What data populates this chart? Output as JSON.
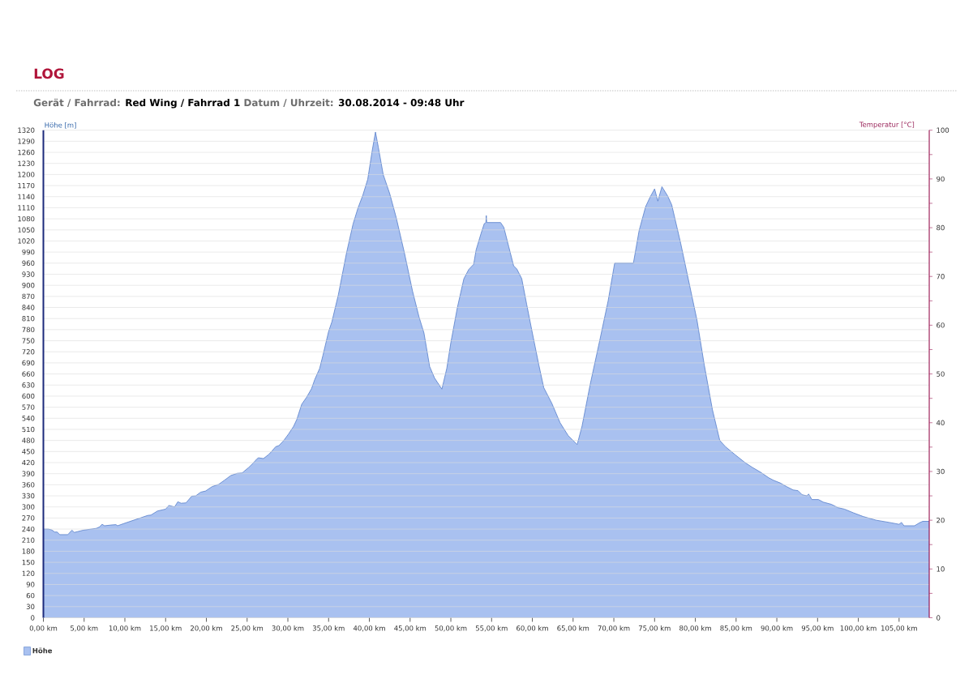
{
  "chart_data": {
    "type": "area",
    "title": "LOG",
    "subtitle": "Gerät / Fahrrad: **Red Wing / Fahrrad 1**  Datum / Uhrzeit: **30.08.2014 - 09:48 Uhr**",
    "ylabel": "Höhe [m]",
    "y2label": "Temperatur [°C]",
    "x": [
      0,
      0.6,
      1.0,
      1.4,
      1.7,
      2.0,
      3.0,
      3.5,
      3.8,
      4.9,
      6.5,
      6.9,
      7.2,
      7.5,
      8.3,
      8.9,
      9.1,
      10.0,
      11.6,
      12.8,
      13.2,
      14.0,
      15.0,
      15.4,
      16.1,
      16.5,
      16.9,
      17.5,
      18.2,
      18.7,
      19.3,
      19.9,
      20.7,
      21.5,
      22.2,
      23.0,
      23.8,
      24.4,
      24.6,
      25.2,
      25.8,
      26.2,
      26.4,
      27.0,
      27.6,
      28.0,
      28.5,
      28.9,
      29.5,
      30.1,
      30.7,
      31.1,
      31.7,
      32.3,
      32.9,
      33.3,
      33.9,
      34.3,
      35.0,
      35.4,
      36.2,
      37.2,
      38.0,
      38.6,
      39.2,
      39.8,
      40.35,
      40.75,
      41.1,
      41.7,
      42.5,
      43.3,
      44.3,
      45.3,
      46.1,
      46.7,
      47.4,
      48.0,
      48.9,
      49.5,
      50.0,
      50.8,
      51.6,
      52.2,
      52.8,
      53.1,
      53.7,
      54.1,
      54.3,
      54.35,
      54.4,
      56.1,
      56.5,
      57.1,
      57.7,
      58.1,
      58.7,
      59.3,
      60.0,
      60.8,
      61.4,
      62.4,
      63.4,
      64.4,
      65.5,
      66.1,
      67.1,
      68.3,
      69.3,
      70.1,
      72.4,
      73.1,
      73.9,
      74.45,
      75.0,
      75.4,
      75.9,
      76.6,
      77.1,
      78.2,
      79.2,
      80.2,
      81.1,
      82.1,
      83.0,
      83.7,
      84.9,
      86.1,
      87.0,
      88.0,
      89.0,
      89.6,
      90.4,
      91.2,
      92.0,
      92.6,
      93.1,
      93.7,
      93.9,
      94.3,
      95.1,
      95.7,
      96.7,
      97.5,
      98.3,
      99.4,
      100.6,
      102.2,
      103.8,
      105.0,
      105.3,
      105.6,
      106.9,
      107.5,
      107.9,
      108.7
    ],
    "series": [
      {
        "name": "Höhe",
        "color": "#a9c1f0",
        "values": [
          240,
          240,
          238,
          232,
          232,
          225,
          225,
          237,
          231,
          237,
          242,
          246,
          253,
          249,
          251,
          252,
          249,
          256,
          268,
          277,
          278,
          289,
          294,
          304,
          300,
          314,
          310,
          311,
          329,
          330,
          340,
          343,
          355,
          361,
          372,
          385,
          391,
          392,
          396,
          407,
          420,
          430,
          433,
          431,
          441,
          450,
          463,
          466,
          480,
          498,
          518,
          537,
          578,
          597,
          620,
          645,
          675,
          710,
          775,
          801,
          875,
          988,
          1066,
          1109,
          1144,
          1187,
          1265,
          1315,
          1274,
          1200,
          1148,
          1083,
          988,
          884,
          814,
          771,
          680,
          649,
          619,
          675,
          745,
          840,
          918,
          943,
          957,
          996,
          1040,
          1067,
          1070,
          1089,
          1070,
          1070,
          1057,
          1005,
          953,
          944,
          918,
          849,
          771,
          684,
          623,
          580,
          528,
          493,
          469,
          519,
          632,
          754,
          858,
          960,
          960,
          1048,
          1113,
          1139,
          1161,
          1128,
          1167,
          1142,
          1118,
          1014,
          910,
          806,
          684,
          563,
          480,
          463,
          441,
          420,
          407,
          394,
          379,
          372,
          365,
          355,
          346,
          344,
          333,
          330,
          335,
          320,
          320,
          313,
          307,
          298,
          294,
          284,
          274,
          264,
          258,
          253,
          258,
          249,
          249,
          257,
          261,
          261
        ]
      }
    ],
    "xlim": [
      0,
      108.7
    ],
    "xticks": [
      {
        "value": 0,
        "label": "0,00 km"
      },
      {
        "value": 5,
        "label": "5,00 km"
      },
      {
        "value": 10,
        "label": "10,00 km"
      },
      {
        "value": 15,
        "label": "15,00 km"
      },
      {
        "value": 20,
        "label": "20,00 km"
      },
      {
        "value": 25,
        "label": "25,00 km"
      },
      {
        "value": 30,
        "label": "30,00 km"
      },
      {
        "value": 35,
        "label": "35,00 km"
      },
      {
        "value": 40,
        "label": "40,00 km"
      },
      {
        "value": 45,
        "label": "45,00 km"
      },
      {
        "value": 50,
        "label": "50,00 km"
      },
      {
        "value": 55,
        "label": "55,00 km"
      },
      {
        "value": 60,
        "label": "60,00 km"
      },
      {
        "value": 65,
        "label": "65,00 km"
      },
      {
        "value": 70,
        "label": "70,00 km"
      },
      {
        "value": 75,
        "label": "75,00 km"
      },
      {
        "value": 80,
        "label": "80,00 km"
      },
      {
        "value": 85,
        "label": "85,00 km"
      },
      {
        "value": 90,
        "label": "90,00 km"
      },
      {
        "value": 95,
        "label": "95,00 km"
      },
      {
        "value": 100,
        "label": "100,00 km"
      },
      {
        "value": 105,
        "label": "105,00 km"
      }
    ],
    "ylim": [
      0,
      1320
    ],
    "yticks": [
      0,
      30,
      60,
      90,
      120,
      150,
      180,
      210,
      240,
      270,
      300,
      330,
      360,
      390,
      420,
      450,
      480,
      510,
      540,
      570,
      600,
      630,
      660,
      690,
      720,
      750,
      780,
      810,
      840,
      870,
      900,
      930,
      960,
      990,
      1020,
      1050,
      1080,
      1110,
      1140,
      1170,
      1200,
      1230,
      1260,
      1290,
      1320
    ],
    "y2lim": [
      0,
      100
    ],
    "y2ticks": [
      0,
      {
        "value": 5,
        "label": null
      },
      10,
      {
        "value": 15,
        "label": null
      },
      20,
      {
        "value": 25,
        "label": null
      },
      30,
      {
        "value": 35,
        "label": null
      },
      40,
      {
        "value": 45,
        "label": null
      },
      50,
      {
        "value": 55,
        "label": null
      },
      60,
      {
        "value": 65,
        "label": null
      },
      70,
      {
        "value": 75,
        "label": null
      },
      80,
      {
        "value": 85,
        "label": null
      },
      90,
      {
        "value": 95,
        "label": null
      },
      100
    ],
    "grid": "y",
    "legend": "bottom left"
  }
}
